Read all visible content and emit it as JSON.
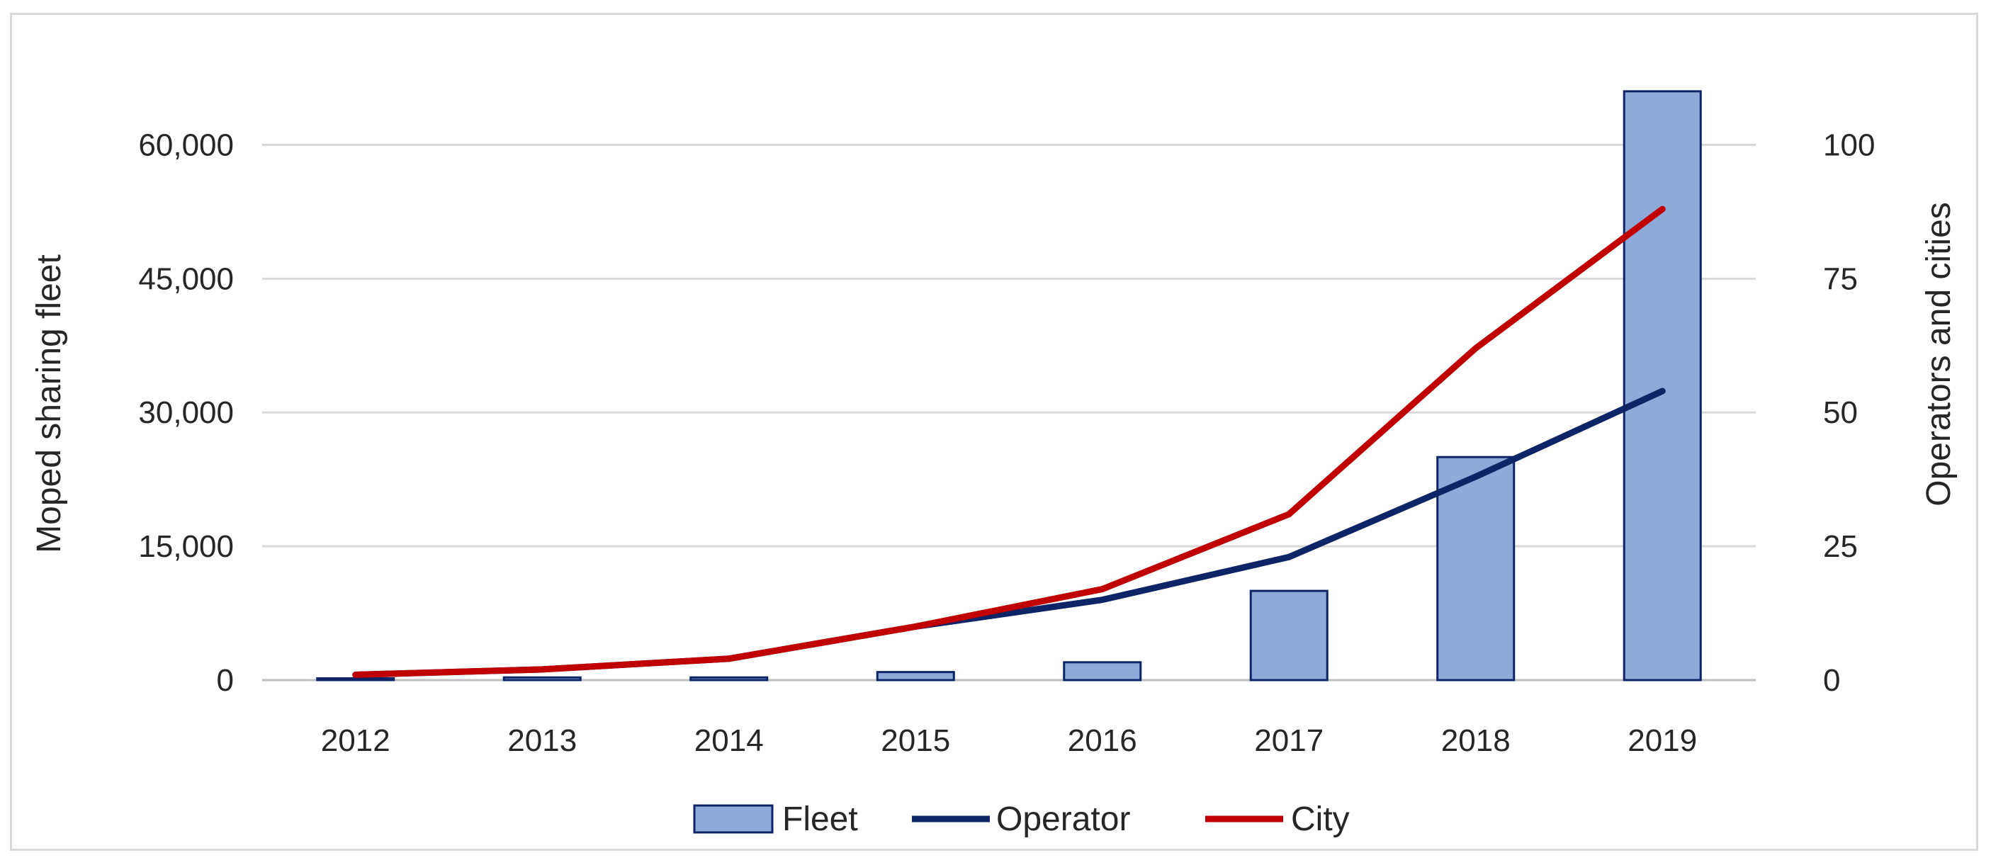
{
  "chart_data": {
    "type": "bar",
    "title": "",
    "categories": [
      "2012",
      "2013",
      "2014",
      "2015",
      "2016",
      "2017",
      "2018",
      "2019"
    ],
    "series": [
      {
        "name": "Fleet",
        "type": "bar",
        "axis": "left",
        "values": [
          200,
          300,
          300,
          900,
          2000,
          10000,
          25000,
          66000
        ],
        "color": "#8eaadb"
      },
      {
        "name": "Operator",
        "type": "line",
        "axis": "right",
        "values": [
          1,
          2,
          4,
          10,
          15,
          23,
          38,
          54
        ],
        "color": "#0d2466"
      },
      {
        "name": "City",
        "type": "line",
        "axis": "right",
        "values": [
          1,
          2,
          4,
          10,
          17,
          31,
          62,
          88
        ],
        "color": "#c00000"
      }
    ],
    "ylabel": "Moped sharing fleet",
    "y2label": "Operators and cities",
    "ylim": [
      0,
      67500
    ],
    "y2lim": [
      0,
      112.5
    ],
    "yticks": [
      "0",
      "15,000",
      "30,000",
      "45,000",
      "60,000"
    ],
    "y2ticks": [
      "0",
      "25",
      "50",
      "75",
      "100"
    ],
    "ytick_values": [
      0,
      15000,
      30000,
      45000,
      60000
    ],
    "y2tick_values": [
      0,
      25,
      50,
      75,
      100
    ],
    "grid": true,
    "legend_position": "bottom-center",
    "legend": [
      "Fleet",
      "Operator",
      "City"
    ]
  }
}
